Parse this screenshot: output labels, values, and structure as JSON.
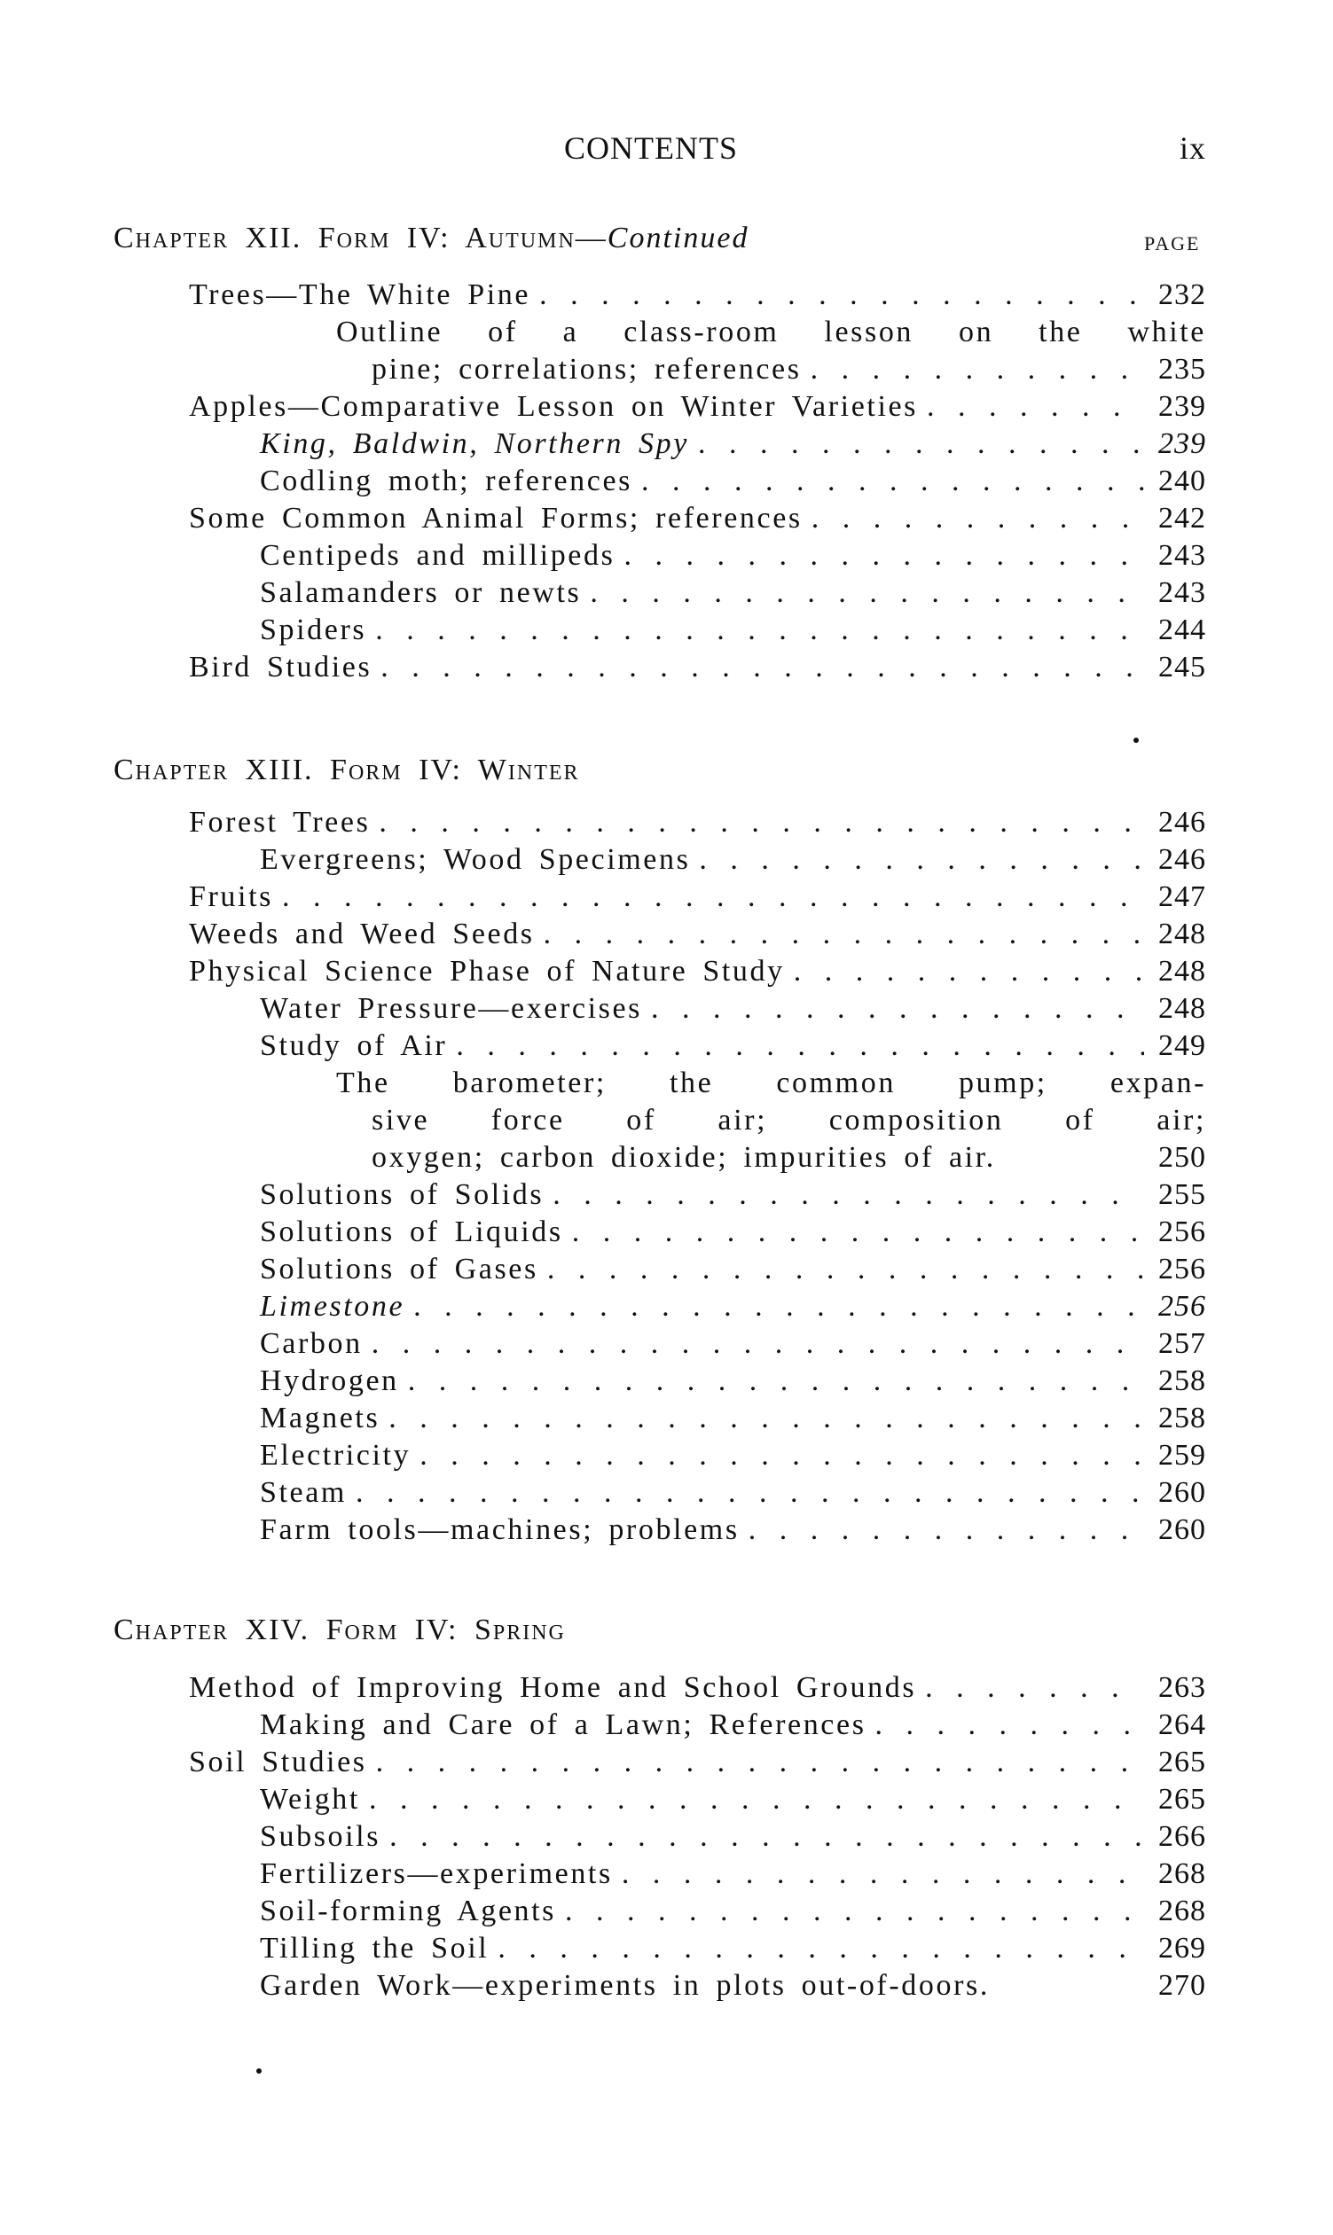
{
  "header": {
    "title": "CONTENTS",
    "page_number": "ix"
  },
  "page_label": "PAGE",
  "chapters": [
    {
      "heading": "Chapter XII.  Form IV: Autumn—",
      "heading_italic": "Continued",
      "entries": [
        {
          "level": 1,
          "text": "Trees—The White Pine",
          "page": "232"
        },
        {
          "level": 3,
          "text": "Outline of a class-room lesson on the white",
          "cont": true
        },
        {
          "level": 4,
          "text": "pine; correlations; references",
          "page": "235"
        },
        {
          "level": 1,
          "text": "Apples—Comparative Lesson on Winter Varieties",
          "page": "239"
        },
        {
          "level": 2,
          "text": "King, Baldwin, Northern Spy",
          "page": "239",
          "italic": true
        },
        {
          "level": 2,
          "text": "Codling moth; references",
          "page": "240"
        },
        {
          "level": 1,
          "text": "Some Common Animal Forms; references",
          "page": "242"
        },
        {
          "level": 2,
          "text": "Centipeds and millipeds",
          "page": "243"
        },
        {
          "level": 2,
          "text": "Salamanders or newts",
          "page": "243"
        },
        {
          "level": 2,
          "text": "Spiders",
          "page": "244"
        },
        {
          "level": 1,
          "text": "Bird Studies",
          "page": "245"
        }
      ]
    },
    {
      "heading": "Chapter XIII.  Form IV: Winter",
      "entries": [
        {
          "level": 1,
          "text": "Forest Trees",
          "page": "246"
        },
        {
          "level": 2,
          "text": "Evergreens; Wood Specimens",
          "page": "246"
        },
        {
          "level": 1,
          "text": "Fruits",
          "page": "247"
        },
        {
          "level": 1,
          "text": "Weeds and Weed Seeds",
          "page": "248"
        },
        {
          "level": 1,
          "text": "Physical Science Phase of Nature Study",
          "page": "248"
        },
        {
          "level": 2,
          "text": "Water Pressure—exercises",
          "page": "248"
        },
        {
          "level": 2,
          "text": "Study of Air",
          "page": "249"
        },
        {
          "level": 3,
          "text": "The barometer; the common pump; expan-",
          "cont": true
        },
        {
          "level": 4,
          "text": "sive force of air; composition of air;",
          "cont": true
        },
        {
          "level": 4,
          "text": "oxygen; carbon dioxide; impurities of air.",
          "page": "250",
          "noleader": true
        },
        {
          "level": 2,
          "text": "Solutions of Solids",
          "page": "255"
        },
        {
          "level": 2,
          "text": "Solutions of Liquids",
          "page": "256"
        },
        {
          "level": 2,
          "text": "Solutions of Gases",
          "page": "256"
        },
        {
          "level": 2,
          "text": "Limestone",
          "page": "256",
          "italic": true
        },
        {
          "level": 2,
          "text": "Carbon",
          "page": "257"
        },
        {
          "level": 2,
          "text": "Hydrogen",
          "page": "258"
        },
        {
          "level": 2,
          "text": "Magnets",
          "page": "258"
        },
        {
          "level": 2,
          "text": "Electricity",
          "page": "259"
        },
        {
          "level": 2,
          "text": "Steam",
          "page": "260"
        },
        {
          "level": 2,
          "text": "Farm tools—machines; problems",
          "page": "260"
        }
      ]
    },
    {
      "heading": "Chapter XIV.  Form IV: Spring",
      "entries": [
        {
          "level": 1,
          "text": "Method of Improving Home and School Grounds",
          "page": "263"
        },
        {
          "level": 2,
          "text": "Making and Care of a Lawn; References",
          "page": "264"
        },
        {
          "level": 1,
          "text": "Soil Studies",
          "page": "265"
        },
        {
          "level": 2,
          "text": "Weight",
          "page": "265"
        },
        {
          "level": 2,
          "text": "Subsoils",
          "page": "266"
        },
        {
          "level": 2,
          "text": "Fertilizers—experiments",
          "page": "268"
        },
        {
          "level": 2,
          "text": "Soil-forming Agents",
          "page": "268"
        },
        {
          "level": 2,
          "text": "Tilling the Soil",
          "page": "269"
        },
        {
          "level": 2,
          "text": "Garden Work—experiments in plots out-of-doors.",
          "page": "270",
          "noleader": true
        }
      ]
    }
  ]
}
